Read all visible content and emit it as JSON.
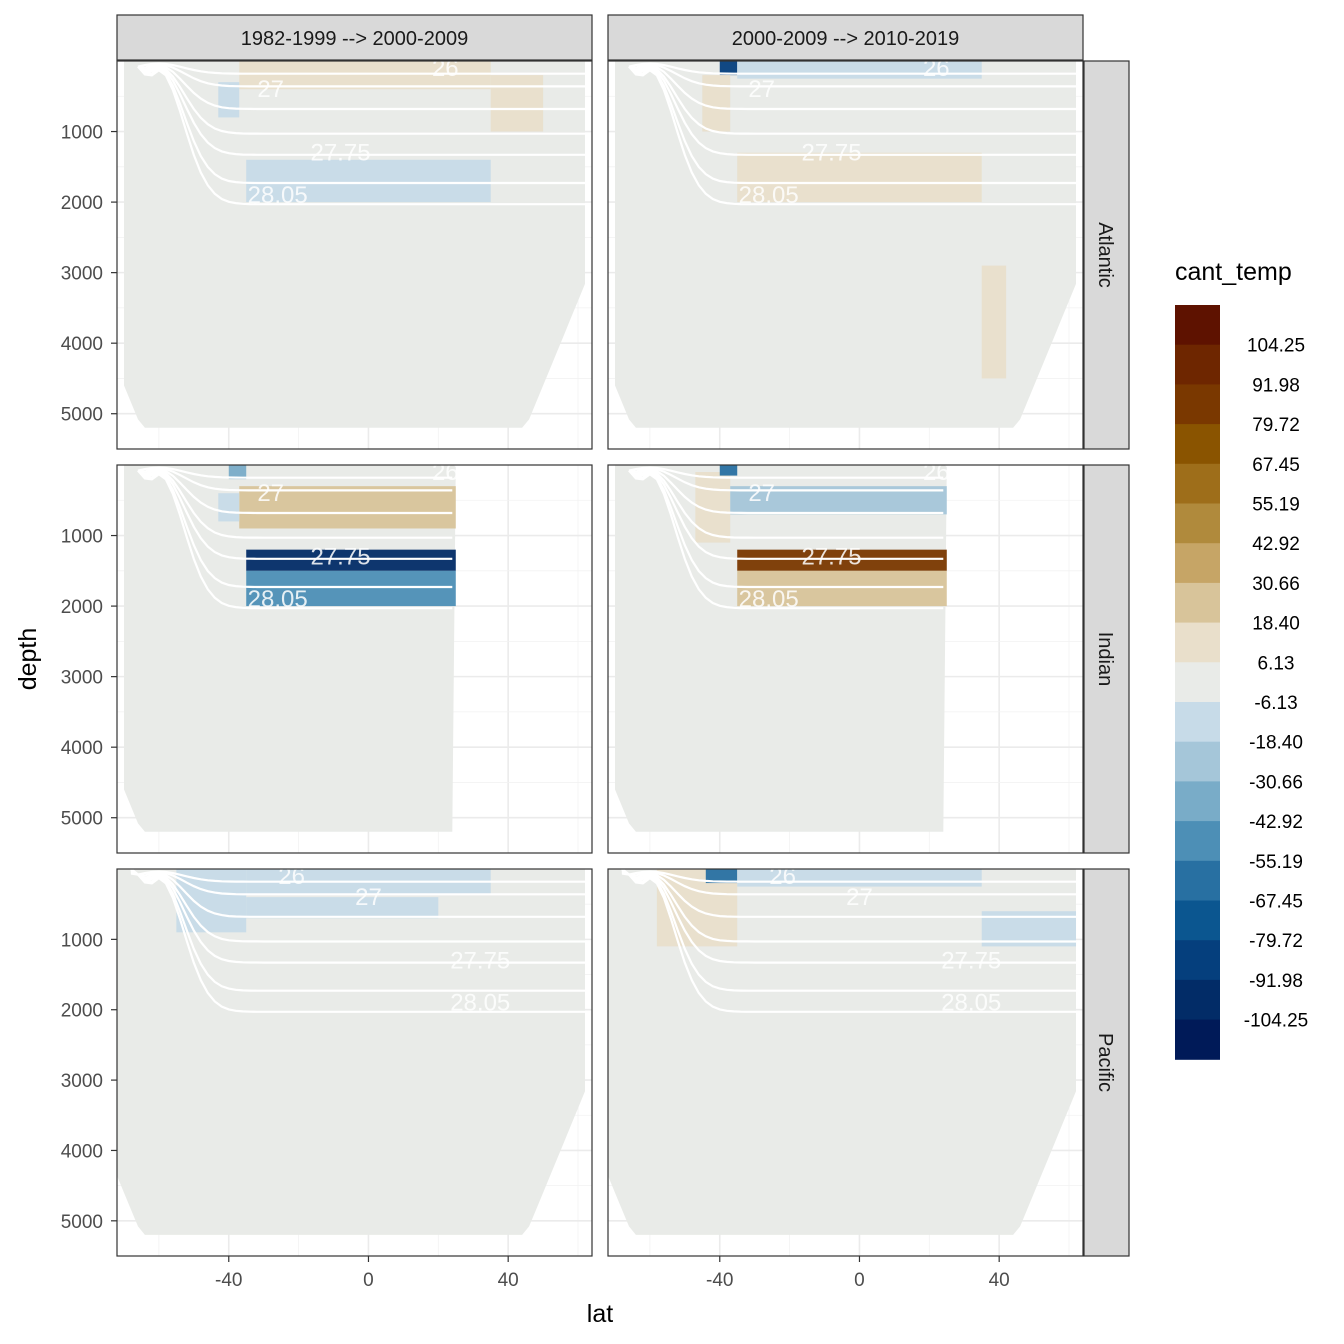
{
  "chart_data": {
    "type": "heatmap",
    "subtype": "faceted ocean section (contour-filled)",
    "x": {
      "label": "lat",
      "ticks": [
        -40,
        0,
        40
      ],
      "range": [
        -72,
        64
      ]
    },
    "y": {
      "label": "depth",
      "ticks": [
        1000,
        2000,
        3000,
        4000,
        5000
      ],
      "range": [
        0,
        5500
      ],
      "reversed": true
    },
    "columns": [
      "1982-1999 --> 2000-2009",
      "2000-2009 --> 2010-2019"
    ],
    "rows": [
      "Atlantic",
      "Indian",
      "Pacific"
    ],
    "legend": {
      "title": "cant_temp",
      "breaks": [
        "104.25",
        "91.98",
        "79.72",
        "67.45",
        "55.19",
        "42.92",
        "30.66",
        "18.40",
        "6.13",
        "-6.13",
        "-18.40",
        "-30.66",
        "-42.92",
        "-55.19",
        "-67.45",
        "-79.72",
        "-91.98",
        "-104.25"
      ],
      "colors": [
        "#5e1200",
        "#6e2600",
        "#7a3800",
        "#8a5400",
        "#9e6e1a",
        "#b08a3c",
        "#c6a566",
        "#d8c49a",
        "#e9dfcb",
        "#e9ebe8",
        "#c7dbe8",
        "#a5c6d9",
        "#79acc8",
        "#4d8fb6",
        "#2870a2",
        "#0b5690",
        "#053f7d",
        "#022c67",
        "#001a58"
      ]
    },
    "density_contours": [
      "26",
      "27",
      "27.75",
      "28.05"
    ],
    "panels": [
      {
        "row": "Atlantic",
        "col": "1982-1999 --> 2000-2009",
        "lat_range": [
          -70,
          62
        ],
        "bands": [
          {
            "lat": [
              -37,
              35
            ],
            "depth": [
              0,
              400
            ],
            "value": 12
          },
          {
            "lat": [
              35,
              50
            ],
            "depth": [
              200,
              1000
            ],
            "value": 12
          },
          {
            "lat": [
              -43,
              -37
            ],
            "depth": [
              300,
              800
            ],
            "value": -12
          },
          {
            "lat": [
              -35,
              35
            ],
            "depth": [
              1400,
              2000
            ],
            "value": -12
          }
        ]
      },
      {
        "row": "Atlantic",
        "col": "2000-2009 --> 2010-2019",
        "lat_range": [
          -70,
          62
        ],
        "bands": [
          {
            "lat": [
              -40,
              -35
            ],
            "depth": [
              0,
              200
            ],
            "value": -90
          },
          {
            "lat": [
              -35,
              35
            ],
            "depth": [
              0,
              250
            ],
            "value": -12
          },
          {
            "lat": [
              -45,
              -37
            ],
            "depth": [
              200,
              1000
            ],
            "value": 12
          },
          {
            "lat": [
              -35,
              35
            ],
            "depth": [
              1300,
              2000
            ],
            "value": 12
          },
          {
            "lat": [
              35,
              42
            ],
            "depth": [
              2900,
              4500
            ],
            "value": 12
          }
        ]
      },
      {
        "row": "Indian",
        "col": "1982-1999 --> 2000-2009",
        "lat_range": [
          -70,
          25
        ],
        "bands": [
          {
            "lat": [
              -37,
              25
            ],
            "depth": [
              300,
              900
            ],
            "value": 25
          },
          {
            "lat": [
              -43,
              -37
            ],
            "depth": [
              400,
              800
            ],
            "value": -12
          },
          {
            "lat": [
              -35,
              25
            ],
            "depth": [
              1200,
              1500
            ],
            "value": -104
          },
          {
            "lat": [
              -35,
              25
            ],
            "depth": [
              1500,
              2000
            ],
            "value": -55
          },
          {
            "lat": [
              -40,
              -35
            ],
            "depth": [
              0,
              200
            ],
            "value": -35
          }
        ]
      },
      {
        "row": "Indian",
        "col": "2000-2009 --> 2010-2019",
        "lat_range": [
          -70,
          25
        ],
        "bands": [
          {
            "lat": [
              -47,
              -37
            ],
            "depth": [
              100,
              1100
            ],
            "value": 12
          },
          {
            "lat": [
              -37,
              25
            ],
            "depth": [
              300,
              700
            ],
            "value": -25
          },
          {
            "lat": [
              -35,
              25
            ],
            "depth": [
              1200,
              1500
            ],
            "value": 80
          },
          {
            "lat": [
              -35,
              25
            ],
            "depth": [
              1500,
              2000
            ],
            "value": 20
          },
          {
            "lat": [
              -40,
              -35
            ],
            "depth": [
              0,
              150
            ],
            "value": -60
          }
        ]
      },
      {
        "row": "Pacific",
        "col": "1982-1999 --> 2000-2009",
        "lat_range": [
          -72,
          62
        ],
        "bands": [
          {
            "lat": [
              -55,
              -35
            ],
            "depth": [
              0,
              900
            ],
            "value": -12
          },
          {
            "lat": [
              -35,
              35
            ],
            "depth": [
              0,
              350
            ],
            "value": -12
          },
          {
            "lat": [
              -35,
              20
            ],
            "depth": [
              400,
              700
            ],
            "value": -12
          }
        ]
      },
      {
        "row": "Pacific",
        "col": "2000-2009 --> 2010-2019",
        "lat_range": [
          -72,
          62
        ],
        "bands": [
          {
            "lat": [
              -58,
              -35
            ],
            "depth": [
              0,
              1100
            ],
            "value": 12
          },
          {
            "lat": [
              -44,
              -35
            ],
            "depth": [
              0,
              200
            ],
            "value": -60
          },
          {
            "lat": [
              -35,
              35
            ],
            "depth": [
              0,
              250
            ],
            "value": -12
          },
          {
            "lat": [
              35,
              62
            ],
            "depth": [
              600,
              1100
            ],
            "value": -12
          }
        ]
      }
    ]
  }
}
